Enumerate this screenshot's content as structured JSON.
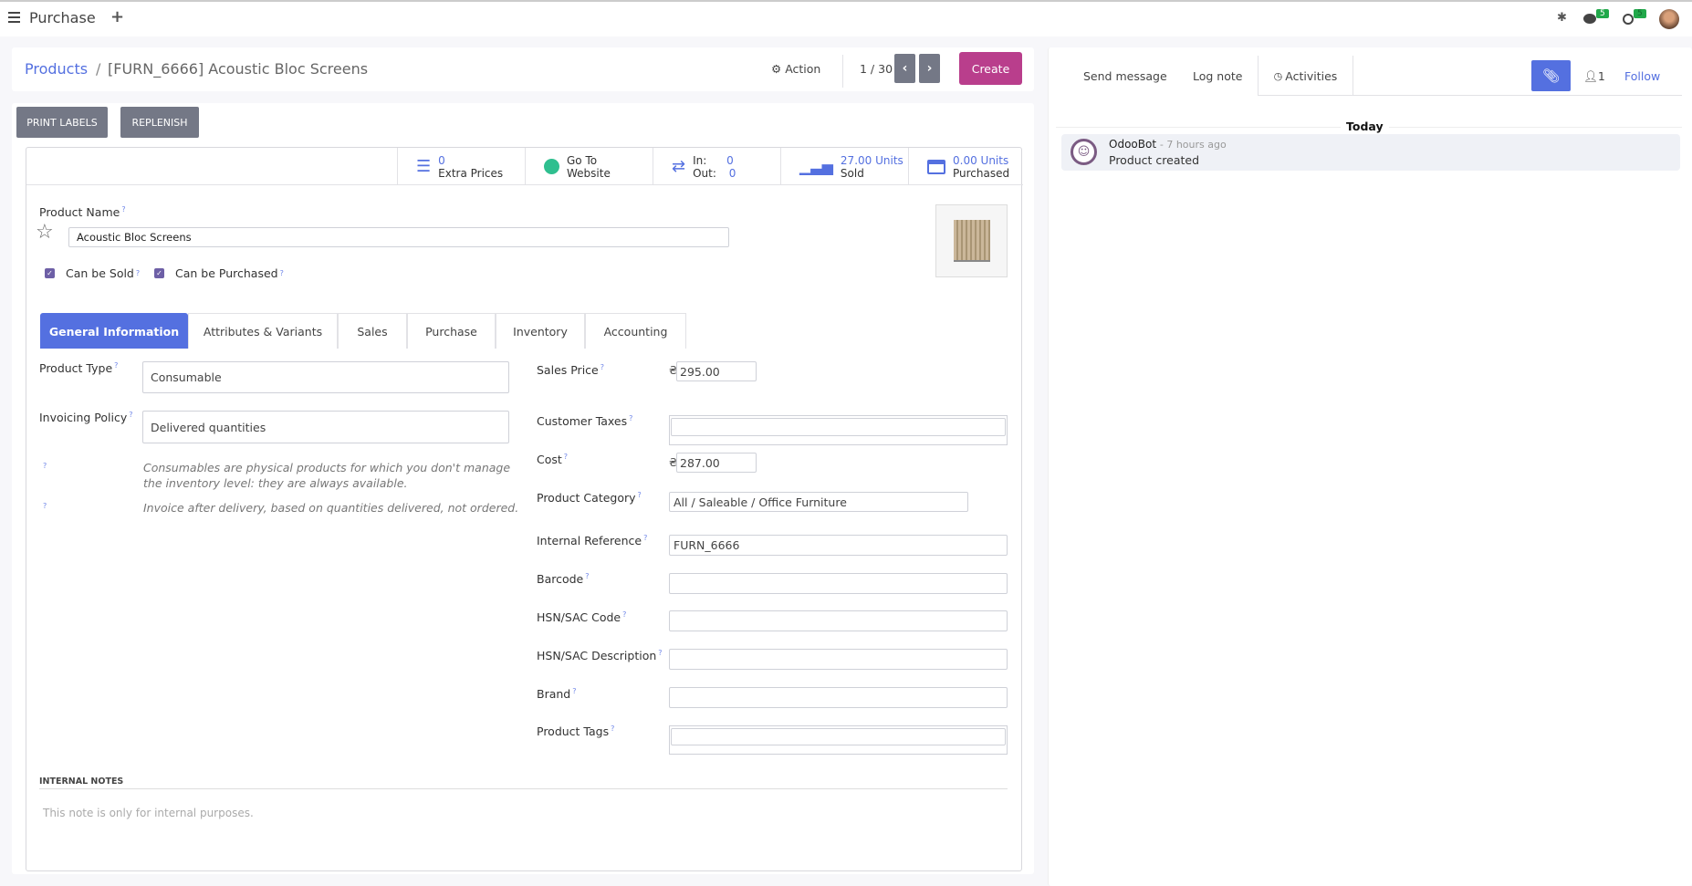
{
  "topbar": {
    "app_name": "Purchase",
    "plus": "+",
    "messages_count": "5",
    "activities_count": "5"
  },
  "breadcrumb": {
    "parent": "Products",
    "separator": "/",
    "current": "[FURN_6666] Acoustic Bloc Screens"
  },
  "control": {
    "action_label": "Action",
    "pager": "1 / 30",
    "create_label": "Create"
  },
  "header_buttons": {
    "print_labels": "PRINT LABELS",
    "replenish": "REPLENISH"
  },
  "stats": [
    {
      "value": "0",
      "label": "Extra Prices",
      "icon": "list-icon"
    },
    {
      "value": "Go To",
      "label": "Website",
      "icon": "globe-icon"
    },
    {
      "in_label": "In:",
      "in_value": "0",
      "out_label": "Out:",
      "out_value": "0",
      "icon": "transfer-icon"
    },
    {
      "value": "27.00 Units",
      "label": "Sold",
      "icon": "signal-icon"
    },
    {
      "value": "0.00 Units",
      "label": "Purchased",
      "icon": "credit-card-icon"
    }
  ],
  "form": {
    "product_name_label": "Product Name",
    "product_name": "Acoustic Bloc Screens",
    "can_be_sold": "Can be Sold",
    "can_be_sold_checked": true,
    "can_be_purchased": "Can be Purchased",
    "can_be_purchased_checked": true,
    "help_mark": "?"
  },
  "tabs": [
    "General Information",
    "Attributes & Variants",
    "Sales",
    "Purchase",
    "Inventory",
    "Accounting"
  ],
  "general": {
    "product_type_label": "Product Type",
    "product_type": "Consumable",
    "invoicing_policy_label": "Invoicing Policy",
    "invoicing_policy": "Delivered quantities",
    "help_type": "Consumables are physical products for which you don't manage the inventory level: they are always available.",
    "help_invoice": "Invoice after delivery, based on quantities delivered, not ordered.",
    "currency": "₴",
    "sales_price_label": "Sales Price",
    "sales_price": "295.00",
    "customer_taxes_label": "Customer Taxes",
    "customer_taxes": "",
    "cost_label": "Cost",
    "cost": "287.00",
    "category_label": "Product Category",
    "category": "All / Saleable / Office Furniture",
    "internal_ref_label": "Internal Reference",
    "internal_ref": "FURN_6666",
    "barcode_label": "Barcode",
    "barcode": "",
    "hsn_code_label": "HSN/SAC Code",
    "hsn_code": "",
    "hsn_desc_label": "HSN/SAC Description",
    "hsn_desc": "",
    "brand_label": "Brand",
    "brand": "",
    "tags_label": "Product Tags",
    "tags": "",
    "notes_title": "INTERNAL NOTES",
    "notes_placeholder": "This note is only for internal purposes."
  },
  "chatter": {
    "send_message": "Send message",
    "log_note": "Log note",
    "activities": "Activities",
    "followers_count": "1",
    "follow": "Follow",
    "today": "Today",
    "messages": [
      {
        "author": "OdooBot",
        "time": "- 7 hours ago",
        "body": "Product created"
      }
    ]
  },
  "colors": {
    "primary": "#5470e0",
    "create": "#b93e8c",
    "badge": "#21a84a",
    "gray_button": "#747886"
  }
}
